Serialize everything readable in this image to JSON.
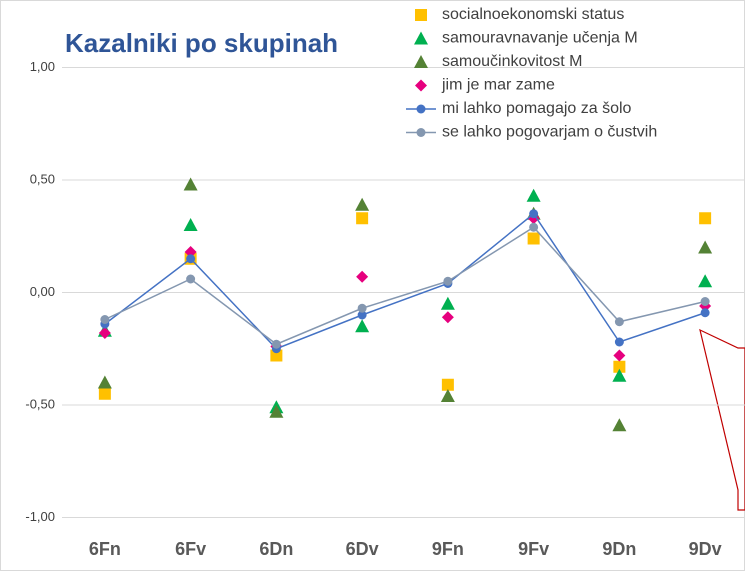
{
  "chart_data": {
    "type": "line",
    "title": "Kazalniki po skupinah",
    "categories": [
      "6Fn",
      "6Fv",
      "6Dn",
      "6Dv",
      "9Fn",
      "9Fv",
      "9Dn",
      "9Dv"
    ],
    "ylim": [
      -1.25,
      1.3
    ],
    "yticks": [
      {
        "value": -1,
        "label": "-1,00"
      },
      {
        "value": -0.5,
        "label": "-0,50"
      },
      {
        "value": 0,
        "label": "0,00"
      },
      {
        "value": 0.5,
        "label": "0,50"
      },
      {
        "value": 1,
        "label": "1,00"
      }
    ],
    "grid": true,
    "series": [
      {
        "name": "socialnoekonomski status",
        "color": "#ffc000",
        "marker": "square",
        "values": [
          -0.45,
          0.15,
          -0.28,
          0.33,
          -0.41,
          0.24,
          -0.33,
          0.33
        ]
      },
      {
        "name": "samouravnavanje učenja M",
        "color": "#00b050",
        "marker": "triangle",
        "values": [
          -0.17,
          0.3,
          -0.51,
          -0.15,
          -0.05,
          0.43,
          -0.37,
          0.05
        ]
      },
      {
        "name": "samoučinkovitost M",
        "color": "#548235",
        "marker": "triangle",
        "values": [
          -0.4,
          0.48,
          -0.53,
          0.39,
          -0.46,
          0.35,
          -0.59,
          0.2
        ]
      },
      {
        "name": "jim je mar zame",
        "color": "#e6007e",
        "marker": "diamond",
        "values": [
          -0.18,
          0.18,
          -0.24,
          0.07,
          -0.11,
          0.33,
          -0.28,
          -0.06
        ]
      },
      {
        "name": "mi lahko pomagajo za šolo",
        "color": "#4472c4",
        "marker": "circle",
        "line": true,
        "values": [
          -0.14,
          0.15,
          -0.25,
          -0.1,
          0.04,
          0.35,
          -0.22,
          -0.09
        ]
      },
      {
        "name": "se lahko pogovarjam o čustvih",
        "color": "#8497b0",
        "marker": "circle",
        "line": true,
        "values": [
          -0.12,
          0.06,
          -0.23,
          -0.07,
          0.05,
          0.29,
          -0.13,
          -0.04
        ]
      }
    ]
  }
}
